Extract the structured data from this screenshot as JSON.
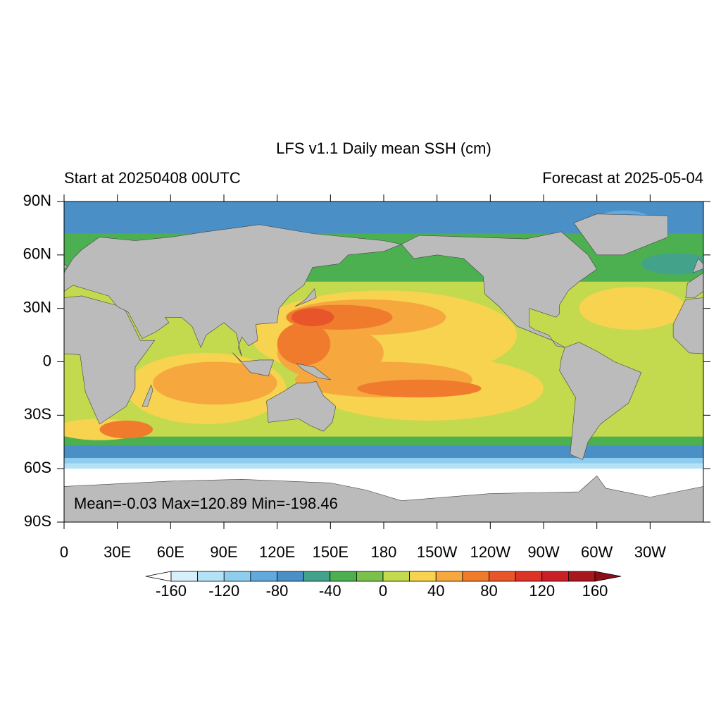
{
  "title": "LFS v1.1 Daily mean SSH (cm)",
  "left_subtitle": "Start at 20250408 00UTC",
  "right_subtitle": "Forecast at 2025-05-04",
  "annotation": "Mean=-0.03  Max=120.89  Min=-198.46",
  "map": {
    "lon_ticks": [
      0,
      {
        "value": 30,
        "label": "30E"
      },
      {
        "value": 60,
        "label": "60E"
      },
      {
        "value": 90,
        "label": "90E"
      },
      {
        "value": 120,
        "label": "120E"
      },
      {
        "value": 150,
        "label": "150E"
      },
      180,
      {
        "value": 210,
        "label": "150W"
      },
      {
        "value": 240,
        "label": "120W"
      },
      {
        "value": 270,
        "label": "90W"
      },
      {
        "value": 300,
        "label": "60W"
      },
      {
        "value": 330,
        "label": "30W"
      }
    ],
    "lat_ticks": [
      {
        "value": 90,
        "label": "90N"
      },
      {
        "value": 60,
        "label": "60N"
      },
      {
        "value": 30,
        "label": "30N"
      },
      0,
      {
        "value": -30,
        "label": "30S"
      },
      {
        "value": -60,
        "label": "60S"
      },
      {
        "value": -90,
        "label": "90S"
      }
    ]
  },
  "colorbar": {
    "levels": [
      -160,
      -140,
      -120,
      -100,
      -80,
      -60,
      -40,
      -20,
      0,
      20,
      40,
      60,
      80,
      100,
      120,
      140,
      160
    ],
    "colors": [
      "#ffffff",
      "#d6effb",
      "#b3e1f6",
      "#8ecdee",
      "#62a9dd",
      "#4a8fc6",
      "#43a38a",
      "#4cb050",
      "#7cc04c",
      "#c3d94e",
      "#f7d34f",
      "#f6a83e",
      "#f07b2d",
      "#e9552a",
      "#dc3327",
      "#c91f27",
      "#a8161e",
      "#8c0f16"
    ],
    "ticks": [
      -160,
      -120,
      -80,
      -40,
      0,
      40,
      80,
      120,
      160
    ]
  }
}
